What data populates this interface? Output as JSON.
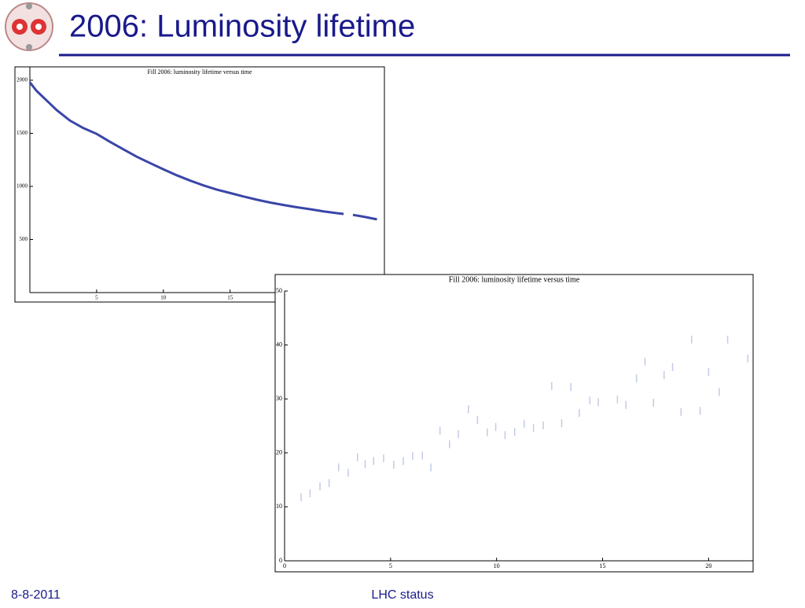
{
  "slide": {
    "title": "2006: Luminosity lifetime",
    "date": "8-8-2011",
    "footer": "LHC status"
  },
  "chart_data": [
    {
      "type": "line",
      "title": "Fill 2006: luminosity lifetime versus time",
      "color": "#3a46a8",
      "x": [
        0,
        0.5,
        1,
        1.5,
        2,
        3,
        4,
        5,
        6,
        7,
        8,
        9,
        10,
        11,
        12,
        13,
        14,
        15,
        16,
        17,
        18,
        19,
        20,
        21,
        22,
        23,
        23.5,
        23.8,
        24.2,
        25,
        26
      ],
      "values": [
        1980,
        1900,
        1840,
        1780,
        1720,
        1620,
        1550,
        1495,
        1420,
        1350,
        1280,
        1220,
        1161,
        1105,
        1055,
        1010,
        970,
        938,
        905,
        875,
        848,
        825,
        804,
        785,
        765,
        748,
        741,
        null,
        732,
        715,
        690
      ],
      "xlim": [
        0,
        26.5
      ],
      "ylim": [
        0,
        2126
      ],
      "xticks": [
        5,
        10,
        15
      ],
      "yticks": [
        500,
        1000,
        1500,
        2000
      ]
    },
    {
      "type": "scatter",
      "title": "Fill 2006: luminosity lifetime versus time",
      "color": "#c3cbe6",
      "x": [
        0.78,
        1.2,
        1.67,
        2.1,
        2.55,
        3.0,
        3.44,
        3.8,
        4.2,
        4.67,
        5.15,
        5.6,
        6.04,
        6.5,
        6.9,
        7.33,
        7.78,
        8.2,
        8.67,
        9.1,
        9.56,
        9.96,
        10.4,
        10.85,
        11.3,
        11.74,
        12.2,
        12.6,
        13.07,
        13.5,
        13.9,
        14.4,
        14.8,
        15.7,
        16.1,
        16.6,
        17.0,
        17.4,
        17.9,
        18.3,
        18.7,
        19.2,
        19.6,
        20.0,
        20.5,
        20.9,
        21.85
      ],
      "values": [
        11.8,
        12.5,
        13.8,
        14.4,
        17.3,
        16.3,
        19.2,
        17.9,
        18.5,
        19.0,
        17.8,
        18.5,
        19.4,
        19.5,
        17.3,
        24.1,
        21.6,
        23.5,
        28.1,
        26.1,
        23.8,
        24.8,
        23.3,
        23.9,
        25.4,
        24.6,
        25.1,
        32.4,
        25.5,
        32.2,
        27.4,
        29.7,
        29.4,
        29.9,
        28.9,
        33.8,
        36.9,
        29.3,
        34.4,
        35.9,
        27.6,
        41.0,
        27.8,
        35.0,
        31.3,
        41.0,
        37.5
      ],
      "xlim": [
        0,
        22.1
      ],
      "ylim": [
        0,
        50
      ],
      "xticks": [
        0,
        5,
        10,
        15,
        20
      ],
      "yticks": [
        0,
        10,
        20,
        30,
        40,
        50
      ]
    }
  ]
}
